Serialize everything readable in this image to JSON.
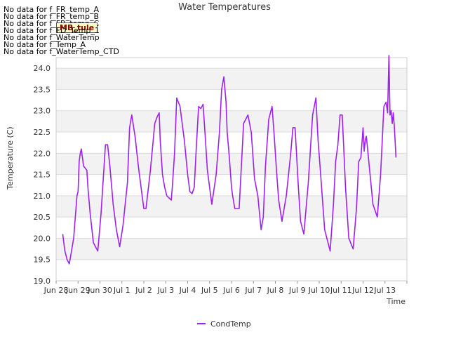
{
  "no_data_messages": [
    "No data for f_FR_temp_A",
    "No data for f_FR_temp_B",
    "No data for f_FR_temp_C",
    "No data for f_FD_Temp_1",
    "No data for f_WaterTemp",
    "No data for f_Temp_A",
    "No data for f_WaterTemp_CTD"
  ],
  "badge_label": "MB_tule",
  "colors": {
    "series": "#a020f0",
    "band": "#f2f2f2",
    "grid": "#dddddd",
    "axis": "#cccccc",
    "text": "#333333"
  },
  "chart_data": {
    "type": "line",
    "title": "Water Temperatures",
    "xlabel": "Time",
    "ylabel": "Temperature (C)",
    "ylim": [
      19.0,
      24.25
    ],
    "xlim": [
      0,
      16
    ],
    "yticks": [
      19.0,
      19.5,
      20.0,
      20.5,
      21.0,
      21.5,
      22.0,
      22.5,
      23.0,
      23.5,
      24.0
    ],
    "ytick_labels": [
      "19.0",
      "19.5",
      "20.0",
      "20.5",
      "21.0",
      "21.5",
      "22.0",
      "22.5",
      "23.0",
      "23.5",
      "24.0"
    ],
    "xticks": [
      0,
      1,
      2,
      3,
      4,
      5,
      6,
      7,
      8,
      9,
      10,
      11,
      12,
      13,
      14,
      15,
      16
    ],
    "xtick_labels": [
      "Jun 28",
      "Jun 29",
      "Jun 30",
      "Jul 1",
      "Jul 2",
      "Jul 3",
      "Jul 4",
      "Jul 5",
      "Jul 6",
      "Jul 7",
      "Jul 8",
      "Jul 9",
      "Jul 10",
      "Jul 11",
      "Jul 12",
      "Jul 13",
      ""
    ],
    "legend": "bottom-center",
    "series": [
      {
        "name": "CondTemp",
        "x": [
          0.3,
          0.4,
          0.5,
          0.6,
          0.8,
          0.95,
          1.0,
          1.05,
          1.1,
          1.15,
          1.25,
          1.4,
          1.45,
          1.55,
          1.7,
          1.9,
          2.05,
          2.15,
          2.25,
          2.35,
          2.45,
          2.6,
          2.75,
          2.9,
          3.05,
          3.25,
          3.35,
          3.45,
          3.6,
          3.75,
          3.85,
          3.95,
          4.0,
          4.1,
          4.3,
          4.5,
          4.6,
          4.7,
          4.75,
          4.85,
          4.95,
          5.05,
          5.15,
          5.25,
          5.3,
          5.4,
          5.5,
          5.65,
          5.85,
          6.0,
          6.1,
          6.2,
          6.3,
          6.4,
          6.5,
          6.6,
          6.7,
          6.75,
          6.8,
          6.9,
          7.1,
          7.3,
          7.45,
          7.55,
          7.65,
          7.75,
          7.8,
          7.9,
          8.0,
          8.05,
          8.15,
          8.35,
          8.55,
          8.75,
          8.9,
          9.05,
          9.2,
          9.35,
          9.45,
          9.55,
          9.7,
          9.85,
          9.95,
          10.05,
          10.15,
          10.3,
          10.5,
          10.7,
          10.8,
          10.9,
          11.05,
          11.15,
          11.3,
          11.5,
          11.7,
          11.85,
          11.95,
          12.05,
          12.15,
          12.25,
          12.5,
          12.65,
          12.75,
          12.85,
          12.95,
          13.05,
          13.2,
          13.35,
          13.55,
          13.7,
          13.8,
          13.9,
          14.0,
          14.05,
          14.1,
          14.15,
          14.3,
          14.45,
          14.65,
          14.8,
          14.95,
          15.05,
          15.12,
          15.18,
          15.23,
          15.28,
          15.33,
          15.38,
          15.43,
          15.5
        ],
        "values": [
          20.1,
          19.7,
          19.5,
          19.4,
          20.0,
          21.0,
          21.1,
          21.8,
          22.0,
          22.1,
          21.7,
          21.6,
          21.2,
          20.6,
          19.9,
          19.7,
          20.6,
          21.4,
          22.2,
          22.2,
          21.7,
          20.8,
          20.2,
          19.8,
          20.3,
          21.3,
          22.6,
          22.9,
          22.4,
          21.7,
          21.3,
          20.9,
          20.7,
          20.7,
          21.6,
          22.7,
          22.85,
          22.95,
          22.3,
          21.5,
          21.2,
          21.0,
          20.95,
          20.9,
          21.2,
          22.0,
          23.3,
          23.1,
          22.3,
          21.5,
          21.1,
          21.05,
          21.2,
          22.2,
          23.1,
          23.05,
          23.15,
          22.8,
          22.4,
          21.6,
          20.8,
          21.5,
          22.5,
          23.5,
          23.8,
          23.2,
          22.5,
          21.9,
          21.2,
          21.0,
          20.7,
          20.7,
          22.7,
          22.9,
          22.5,
          21.4,
          21.0,
          20.2,
          20.5,
          21.7,
          22.8,
          23.1,
          22.4,
          21.6,
          20.9,
          20.4,
          21.0,
          22.0,
          22.6,
          22.6,
          21.2,
          20.4,
          20.1,
          21.3,
          22.9,
          23.3,
          22.3,
          21.6,
          20.9,
          20.2,
          19.7,
          20.8,
          21.8,
          22.2,
          22.9,
          22.9,
          21.2,
          20.0,
          19.75,
          20.7,
          21.8,
          21.9,
          22.6,
          22.05,
          22.3,
          22.4,
          21.6,
          20.8,
          20.5,
          21.5,
          23.1,
          23.2,
          22.95,
          24.3,
          22.9,
          23.0,
          22.7,
          22.95,
          22.6,
          21.9
        ]
      }
    ]
  }
}
